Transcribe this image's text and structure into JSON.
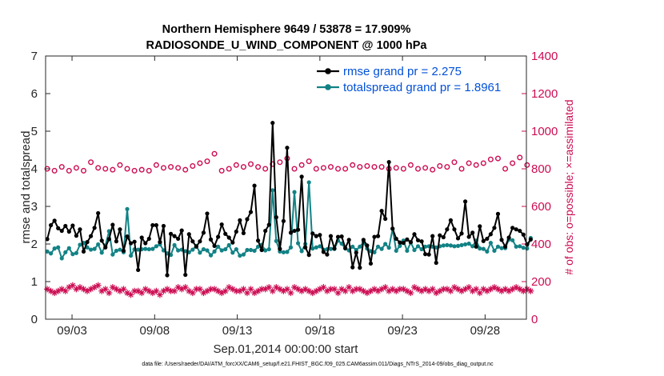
{
  "chart_data": {
    "type": "line",
    "title_line1": "Northern Hemisphere 9649 / 53878 = 17.909%",
    "title_line2": "RADIOSONDE_U_WIND_COMPONENT @ 1000 hPa",
    "xlabel": "Sep.01,2014 00:00:00 start",
    "ylabel_left": "rmse and totalspread",
    "ylabel_right": "# of obs: o=possible; ×=assimilated",
    "ylim_left": [
      0,
      7
    ],
    "ylim_right": [
      0,
      1400
    ],
    "xlim_days": [
      1.4,
      30.5
    ],
    "yticks_left": [
      "0",
      "1",
      "2",
      "3",
      "4",
      "5",
      "6",
      "7"
    ],
    "yticks_right": [
      "0",
      "200",
      "400",
      "600",
      "800",
      "1000",
      "1200",
      "1400"
    ],
    "xtick_days": [
      3,
      8,
      13,
      18,
      23,
      28
    ],
    "xtick_labels": [
      "09/03",
      "09/08",
      "09/13",
      "09/18",
      "09/23",
      "09/28"
    ],
    "legend": {
      "position": "top-right",
      "entries": [
        "rmse grand pr = 2.275",
        "totalspread grand pr = 1.8961"
      ]
    },
    "colors": {
      "rmse": "#000000",
      "spread": "#128285",
      "obs": "#cc0c52"
    },
    "series": [
      {
        "name": "rmse",
        "values": [
          2.13,
          2.5,
          2.62,
          2.42,
          2.35,
          2.48,
          2.33,
          2.49,
          2.22,
          2.39,
          1.8,
          2.05,
          2.21,
          2.43,
          2.82,
          2.09,
          1.91,
          2.13,
          2.51,
          2.07,
          2.39,
          1.82,
          2.2,
          2.02,
          2.06,
          1.31,
          2.17,
          2.02,
          2.14,
          2.5,
          2.5,
          2.05,
          2.48,
          1.17,
          2.27,
          2.21,
          2.14,
          2.36,
          1.18,
          2.26,
          2.07,
          1.93,
          2.07,
          2.3,
          2.81,
          2.12,
          1.95,
          2.19,
          2.52,
          2.27,
          2.17,
          2.04,
          2.33,
          2.63,
          2.29,
          2.66,
          2.85,
          3.55,
          2.09,
          1.84,
          2.35,
          2.51,
          5.22,
          2.71,
          1.87,
          2.61,
          4.56,
          2.3,
          2.35,
          2.38,
          3.79,
          1.91,
          1.71,
          2.28,
          2.21,
          2.24,
          1.79,
          1.72,
          2.21,
          1.88,
          2.19,
          2.2,
          1.89,
          2.11,
          1.38,
          1.77,
          1.37,
          2.11,
          1.96,
          1.48,
          2.19,
          2.21,
          2.88,
          2.67,
          4.18,
          2.41,
          2.14,
          2.04,
          2.03,
          2.12,
          2.05,
          2.26,
          2.1,
          2.07,
          1.73,
          1.72,
          2.21,
          1.5,
          2.23,
          2.18,
          2.39,
          2.63,
          2.39,
          2.15,
          2.28,
          3.13,
          2.19,
          2.3,
          1.93,
          2.47,
          2.08,
          2.14,
          2.26,
          2.43,
          2.8,
          2.11,
          1.93,
          2.17,
          2.43,
          2.39,
          2.35,
          2.25,
          1.99,
          2.12
        ]
      },
      {
        "name": "totalspread",
        "values": [
          1.8,
          1.75,
          1.88,
          1.91,
          1.62,
          1.78,
          1.89,
          1.73,
          1.76,
          1.98,
          2.03,
          1.91,
          1.85,
          1.87,
          1.99,
          1.77,
          1.96,
          2.34,
          1.72,
          1.82,
          1.85,
          1.78,
          2.93,
          1.69,
          1.86,
          1.85,
          1.86,
          1.87,
          1.86,
          1.87,
          1.94,
          1.99,
          1.83,
          1.75,
          1.71,
          1.97,
          1.83,
          1.85,
          1.81,
          1.78,
          1.85,
          1.95,
          1.77,
          1.86,
          1.83,
          1.7,
          1.8,
          1.93,
          1.83,
          1.86,
          1.97,
          1.77,
          1.86,
          1.69,
          1.72,
          1.84,
          1.84,
          1.82,
          1.93,
          1.98,
          1.83,
          1.86,
          3.43,
          2.08,
          1.8,
          1.78,
          1.79,
          1.91,
          3.38,
          2.02,
          1.81,
          2.0,
          3.64,
          1.88,
          1.91,
          1.94,
          1.85,
          1.86,
          1.87,
          1.87,
          2.09,
          2.01,
          1.88,
          1.83,
          1.93,
          1.84,
          1.93,
          2.05,
          1.88,
          1.81,
          1.78,
          1.93,
          1.87,
          2.0,
          1.9,
          2.4,
          1.82,
          1.95,
          2.09,
          1.82,
          2.04,
          1.84,
          1.94,
          1.86,
          1.93,
          1.94,
          1.93,
          1.91,
          1.94,
          1.96,
          1.97,
          1.96,
          1.94,
          1.95,
          1.97,
          1.99,
          2.01,
          1.94,
          2.09,
          1.88,
          1.87,
          1.8,
          2.03,
          1.82,
          1.93,
          1.89,
          1.89,
          2.12,
          2.1,
          1.93,
          1.94,
          1.9,
          1.88,
          2.16
        ]
      },
      {
        "name": "possible",
        "values": [
          800,
          770,
          790,
          795,
          810,
          830,
          790,
          805,
          805,
          800,
          790,
          800,
          835,
          790,
          805,
          780,
          800,
          800,
          795,
          800,
          820,
          810,
          800,
          805,
          790,
          805,
          795,
          805,
          790,
          780,
          820,
          805,
          805,
          820,
          810,
          815,
          805,
          815,
          795,
          805,
          815,
          865,
          830,
          855,
          840,
          815,
          880,
          835,
          790,
          815,
          800,
          855,
          820,
          810,
          810,
          800,
          825,
          795,
          810,
          815,
          800,
          800,
          825,
          855,
          835,
          850,
          855,
          810,
          800,
          810,
          820,
          820,
          840,
          820,
          800,
          800,
          805,
          800,
          810,
          800,
          800,
          805,
          800,
          810,
          820,
          805,
          810,
          800,
          815,
          800,
          810,
          790,
          810,
          800,
          800,
          820,
          805,
          810,
          800,
          815,
          820,
          795,
          800,
          810,
          805,
          815,
          795,
          805,
          815,
          790,
          810,
          815,
          835,
          815,
          800,
          810,
          830,
          800,
          820,
          830,
          830,
          850,
          850,
          845,
          855,
          820,
          800,
          810,
          830,
          850,
          860,
          800,
          820,
          810
        ]
      },
      {
        "name": "assimilated",
        "values": [
          160,
          150,
          140,
          150,
          160,
          150,
          170,
          180,
          160,
          170,
          160,
          150,
          160,
          170,
          180,
          150,
          160,
          140,
          170,
          160,
          150,
          160,
          140,
          130,
          150,
          150,
          140,
          160,
          150,
          140,
          150,
          130,
          150,
          160,
          150,
          150,
          170,
          160,
          170,
          150,
          140,
          160,
          160,
          140,
          150,
          160,
          160,
          150,
          140,
          150,
          170,
          160,
          150,
          150,
          160,
          140,
          160,
          140,
          150,
          160,
          160,
          170,
          150,
          170,
          160,
          150,
          160,
          140,
          170,
          160,
          150,
          160,
          150,
          140,
          150,
          160,
          170,
          150,
          160,
          160,
          140,
          160,
          150,
          170,
          150,
          160,
          160,
          150,
          140,
          150,
          160,
          150,
          160,
          170,
          150,
          160,
          150,
          160,
          160,
          150,
          140,
          170,
          160,
          150,
          160,
          150,
          160,
          140,
          150,
          160,
          160,
          150,
          170,
          160,
          150,
          160,
          170,
          150,
          160,
          140,
          160,
          150,
          160,
          170,
          160,
          150,
          160,
          150,
          160,
          170,
          160,
          150,
          160,
          150
        ]
      }
    ]
  },
  "footnote": "data file: /Users/raeder/DAI/ATM_forcXX/CAM6_setup/f.e21.FHIST_BGC.f09_025.CAM6assim.011/Diags_NTrS_2014-09/obs_diag_output.nc"
}
